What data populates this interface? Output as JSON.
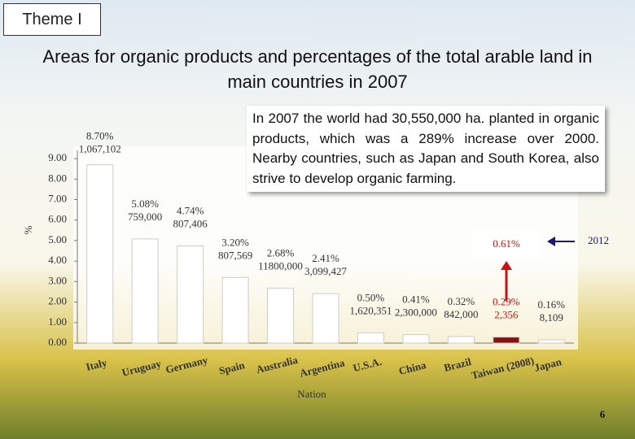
{
  "theme": "Theme I",
  "title": "Areas for organic products and percentages of the total arable land in main countries in 2007",
  "note": "In 2007 the world had 30,550,000 ha. planted in organic products, which was a 289% increase over 2000. Nearby countries, such as Japan and South Korea, also strive to develop organic farming.",
  "highlight": {
    "label": "0.61%",
    "year": "2012"
  },
  "page_number": "6",
  "chart_data": {
    "type": "bar",
    "y_label": "%",
    "x_label": "Nation",
    "categories": [
      "Italy",
      "Uruguay",
      "Germany",
      "Spain",
      "Australia",
      "Argentina",
      "U.S.A.",
      "China",
      "Brazil",
      "Taiwan (2008)",
      "Japan"
    ],
    "values": [
      8.7,
      5.08,
      4.74,
      3.2,
      2.68,
      2.41,
      0.5,
      0.41,
      0.32,
      0.29,
      0.16
    ],
    "value_labels": [
      "8.70%",
      "5.08%",
      "4.74%",
      "3.20%",
      "2.68%",
      "2.41%",
      "0.50%",
      "0.41%",
      "0.32%",
      "0.29%",
      "0.16%"
    ],
    "area_labels": [
      "1,067,102",
      "759,000",
      "807,406",
      "807,569",
      "11800,000",
      "3,099,427",
      "1,620,351",
      "2,300,000",
      "842,000",
      "2,356",
      "8,109"
    ],
    "colors": [
      "#ffffff",
      "#ffffff",
      "#ffffff",
      "#ffffff",
      "#ffffff",
      "#ffffff",
      "#ffffff",
      "#ffffff",
      "#ffffff",
      "#8b1010",
      "#ffffff"
    ],
    "ylim": [
      0,
      9.4
    ],
    "yticks": [
      {
        "value": 0,
        "label": "0.00"
      },
      {
        "value": 1,
        "label": "1.00"
      },
      {
        "value": 2,
        "label": "2.00"
      },
      {
        "value": 3,
        "label": "3.00"
      },
      {
        "value": 4,
        "label": "4.00"
      },
      {
        "value": 5,
        "label": "5.00"
      },
      {
        "value": 6,
        "label": "6.00"
      },
      {
        "value": 7,
        "label": "7.00"
      },
      {
        "value": 8,
        "label": "8.00"
      },
      {
        "value": 9,
        "label": "9.00"
      }
    ]
  }
}
